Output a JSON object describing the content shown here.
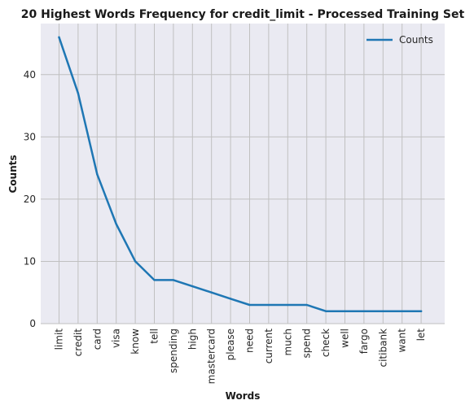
{
  "chart_data": {
    "type": "line",
    "title": "20 Highest Words Frequency for credit_limit - Processed Training Set",
    "xlabel": "Words",
    "ylabel": "Counts",
    "categories": [
      "limit",
      "credit",
      "card",
      "visa",
      "know",
      "tell",
      "spending",
      "high",
      "mastercard",
      "please",
      "need",
      "current",
      "much",
      "spend",
      "check",
      "well",
      "fargo",
      "citibank",
      "want",
      "let"
    ],
    "series": [
      {
        "name": "Counts",
        "values": [
          46,
          37,
          24,
          16,
          10,
          7,
          7,
          6,
          5,
          4,
          3,
          3,
          3,
          3,
          2,
          2,
          2,
          2,
          2,
          2
        ]
      }
    ],
    "yticks": [
      0,
      10,
      20,
      30,
      40
    ],
    "ylim": [
      0,
      48.2
    ],
    "grid": true,
    "legend": "top-right",
    "colors": {
      "line": "#1f77b4",
      "background": "#eaeaf2",
      "grid": "#c0c0c0"
    }
  }
}
